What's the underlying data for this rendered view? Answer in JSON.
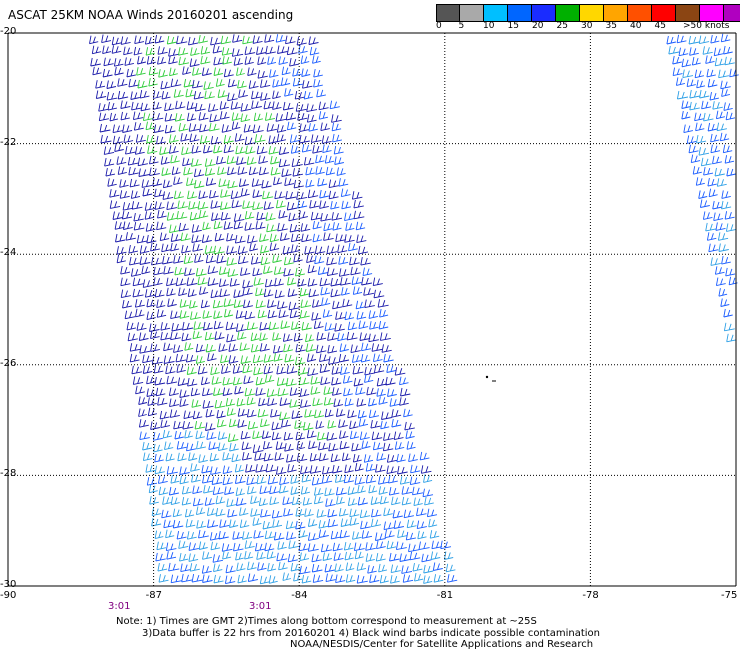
{
  "title": "ASCAT 25KM NOAA Winds 20160201 ascending",
  "legend": {
    "colors": [
      "#555555",
      "#a9a9a9",
      "#00bfff",
      "#0066ff",
      "#1a2cff",
      "#00b000",
      "#ffd700",
      "#ffa500",
      "#ff5000",
      "#ff0000",
      "#8b4513",
      "#ff00ff",
      "#b000c0",
      "#4b0082"
    ],
    "labels": [
      "0",
      "5",
      "10",
      "15",
      "20",
      "25",
      "30",
      "35",
      "40",
      "45"
    ],
    "units": ">50 knots"
  },
  "axes": {
    "lat_labels": [
      "-20",
      "-22",
      "-24",
      "-26",
      "-28",
      "-30"
    ],
    "lon_labels": [
      "-90",
      "-87",
      "-84",
      "-81",
      "-78",
      "-75"
    ]
  },
  "time_labels": [
    "3:01",
    "3:01"
  ],
  "notes": {
    "line1": "Note: 1) Times are GMT 2)Times along bottom correspond to measurement at ~25S",
    "line2": "3)Data buffer is 22 hrs from 20160201 4) Black wind barbs indicate possible contamination",
    "line3": "NOAA/NESDIS/Center for Satellite Applications and Research"
  },
  "map_data": {
    "lon_range": [
      -90,
      -75
    ],
    "lat_range": [
      -30,
      -20
    ],
    "swaths": [
      {
        "name": "main",
        "top_lon": [
          -88.3,
          -83.6
        ],
        "bottom_lon": [
          -86.8,
          -80.7
        ],
        "lat_range": [
          -30,
          -20
        ]
      },
      {
        "name": "east",
        "top_lon": [
          -76.4,
          -75
        ],
        "bottom_lon": [
          -75,
          -75
        ],
        "lat_range": [
          -26,
          -20
        ]
      }
    ],
    "wind_colors": {
      "blue_dark": "#1a1aaa",
      "blue": "#1a5cff",
      "cyan": "#2ea0e6",
      "green": "#2ecc3a"
    }
  }
}
